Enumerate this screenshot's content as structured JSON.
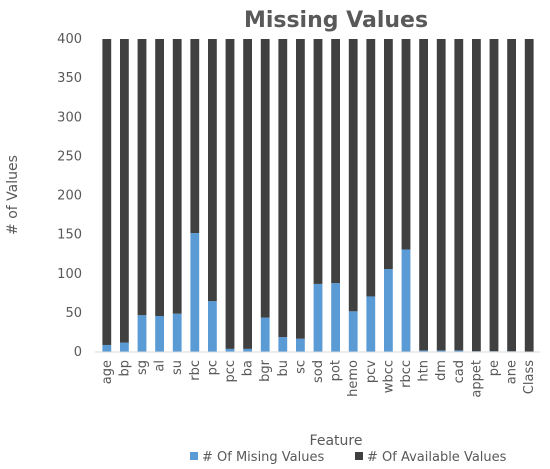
{
  "chart_data": {
    "type": "bar",
    "stacked": true,
    "title": "Missing Values",
    "xlabel": "Feature",
    "ylabel": "# of Values",
    "ylim": [
      0,
      400
    ],
    "yticks": [
      0,
      50,
      100,
      150,
      200,
      250,
      300,
      350,
      400
    ],
    "categories": [
      "age",
      "bp",
      "sg",
      "al",
      "su",
      "rbc",
      "pc",
      "pcc",
      "ba",
      "bgr",
      "bu",
      "sc",
      "sod",
      "pot",
      "hemo",
      "pcv",
      "wbcc",
      "rbcc",
      "htn",
      "dm",
      "cad",
      "appet",
      "pe",
      "ane",
      "Class"
    ],
    "series": [
      {
        "name": "# Of Mising Values",
        "color": "#5b9bd5",
        "values": [
          9,
          12,
          47,
          46,
          49,
          152,
          65,
          4,
          4,
          44,
          19,
          17,
          87,
          88,
          52,
          71,
          106,
          131,
          2,
          2,
          2,
          1,
          1,
          1,
          0
        ]
      },
      {
        "name": "# Of Available Values",
        "color": "#404040",
        "values": [
          391,
          388,
          353,
          354,
          351,
          248,
          335,
          396,
          396,
          356,
          381,
          383,
          313,
          312,
          348,
          329,
          294,
          269,
          398,
          398,
          398,
          399,
          399,
          399,
          400
        ]
      }
    ],
    "grid": false,
    "legend": "bottom"
  }
}
